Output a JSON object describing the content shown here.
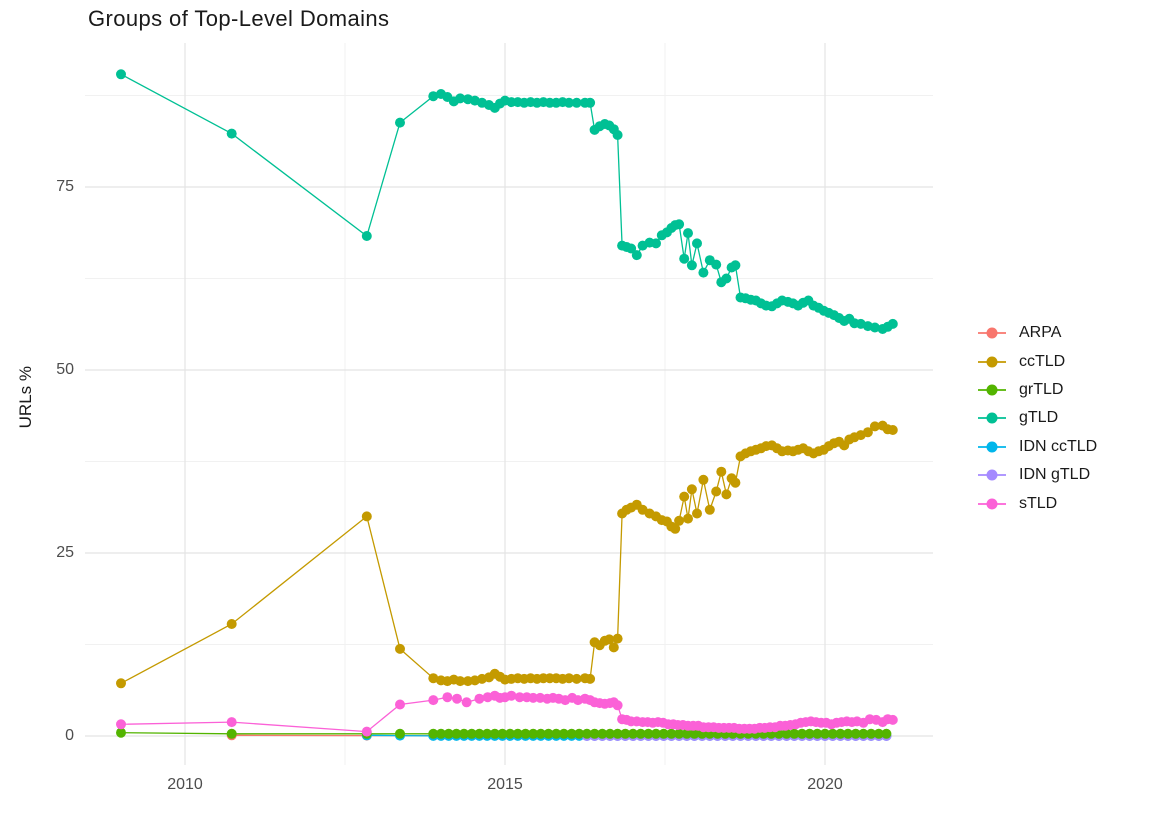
{
  "chart_data": {
    "type": "line",
    "title": "Groups of Top-Level Domains",
    "xlabel": "",
    "ylabel": "URLs %",
    "x_ticks": [
      2010,
      2015,
      2020
    ],
    "x_tick_labels": [
      "2010",
      "2015",
      "2020"
    ],
    "x_minor": [
      2012.5,
      2017.5
    ],
    "y_ticks": [
      0,
      25,
      50,
      75
    ],
    "y_tick_labels": [
      "0",
      "25",
      "50",
      "75"
    ],
    "y_minor": [
      12.5,
      37.5,
      62.5,
      87.5
    ],
    "xlim": [
      2008.44,
      2021.69
    ],
    "ylim": [
      -4.0,
      94.7
    ],
    "grid": true,
    "legend_position": "right",
    "background": "#ffffff",
    "major_grid_color": "#e4e4e4",
    "minor_grid_color": "#f1f1f1",
    "tick_label_color": "#4d4d4d",
    "title_color": "#1a1a1a",
    "draw_order": [
      0,
      4,
      5,
      2,
      3,
      1,
      6
    ],
    "series": [
      {
        "name": "ARPA",
        "color": "#F8766D",
        "points": [
          [
            2010.73,
            0.1
          ],
          [
            2012.84,
            0.05
          ]
        ],
        "flat": {
          "from": 2013.88,
          "to": 2021.06,
          "step": 0.12,
          "value": 0.05
        }
      },
      {
        "name": "ccTLD",
        "color": "#C49A00",
        "points": [
          [
            2009.0,
            7.2
          ],
          [
            2010.73,
            15.3
          ],
          [
            2012.84,
            30.0
          ],
          [
            2013.36,
            11.9
          ],
          [
            2013.88,
            7.9
          ],
          [
            2014.0,
            7.6
          ],
          [
            2014.1,
            7.5
          ],
          [
            2014.2,
            7.7
          ],
          [
            2014.3,
            7.5
          ],
          [
            2014.42,
            7.5
          ],
          [
            2014.53,
            7.6
          ],
          [
            2014.64,
            7.8
          ],
          [
            2014.75,
            8.0
          ],
          [
            2014.84,
            8.5
          ],
          [
            2014.92,
            8.1
          ],
          [
            2015.0,
            7.7
          ],
          [
            2015.1,
            7.8
          ],
          [
            2015.2,
            7.9
          ],
          [
            2015.3,
            7.8
          ],
          [
            2015.4,
            7.9
          ],
          [
            2015.5,
            7.8
          ],
          [
            2015.6,
            7.9
          ],
          [
            2015.7,
            7.9
          ],
          [
            2015.8,
            7.9
          ],
          [
            2015.9,
            7.8
          ],
          [
            2016.0,
            7.9
          ],
          [
            2016.12,
            7.8
          ],
          [
            2016.25,
            7.9
          ],
          [
            2016.33,
            7.8
          ],
          [
            2016.4,
            12.8
          ],
          [
            2016.48,
            12.4
          ],
          [
            2016.56,
            13.0
          ],
          [
            2016.63,
            13.2
          ],
          [
            2016.7,
            12.1
          ],
          [
            2016.76,
            13.3
          ],
          [
            2016.83,
            30.4
          ],
          [
            2016.9,
            30.9
          ],
          [
            2016.97,
            31.2
          ],
          [
            2017.06,
            31.6
          ],
          [
            2017.15,
            30.9
          ],
          [
            2017.26,
            30.4
          ],
          [
            2017.36,
            30.0
          ],
          [
            2017.45,
            29.5
          ],
          [
            2017.53,
            29.3
          ],
          [
            2017.6,
            28.6
          ],
          [
            2017.66,
            28.3
          ],
          [
            2017.72,
            29.4
          ],
          [
            2017.8,
            32.7
          ],
          [
            2017.86,
            29.7
          ],
          [
            2017.92,
            33.7
          ],
          [
            2018.0,
            30.4
          ],
          [
            2018.1,
            35.0
          ],
          [
            2018.2,
            30.9
          ],
          [
            2018.3,
            33.4
          ],
          [
            2018.38,
            36.1
          ],
          [
            2018.46,
            33.0
          ],
          [
            2018.54,
            35.2
          ],
          [
            2018.6,
            34.6
          ],
          [
            2018.68,
            38.2
          ],
          [
            2018.76,
            38.6
          ],
          [
            2018.84,
            38.9
          ],
          [
            2018.92,
            39.1
          ],
          [
            2019.0,
            39.3
          ],
          [
            2019.08,
            39.6
          ],
          [
            2019.17,
            39.7
          ],
          [
            2019.25,
            39.3
          ],
          [
            2019.33,
            38.9
          ],
          [
            2019.42,
            39.0
          ],
          [
            2019.5,
            38.9
          ],
          [
            2019.58,
            39.1
          ],
          [
            2019.66,
            39.3
          ],
          [
            2019.74,
            38.9
          ],
          [
            2019.82,
            38.6
          ],
          [
            2019.9,
            38.9
          ],
          [
            2019.98,
            39.1
          ],
          [
            2020.06,
            39.6
          ],
          [
            2020.14,
            40.0
          ],
          [
            2020.22,
            40.2
          ],
          [
            2020.3,
            39.7
          ],
          [
            2020.38,
            40.5
          ],
          [
            2020.46,
            40.8
          ],
          [
            2020.56,
            41.1
          ],
          [
            2020.67,
            41.5
          ],
          [
            2020.78,
            42.3
          ],
          [
            2020.9,
            42.4
          ],
          [
            2020.98,
            41.9
          ],
          [
            2021.06,
            41.8
          ]
        ]
      },
      {
        "name": "grTLD",
        "color": "#53B400",
        "points": [
          [
            2009.0,
            0.45
          ],
          [
            2010.73,
            0.3
          ],
          [
            2012.84,
            0.3
          ],
          [
            2013.36,
            0.3
          ]
        ],
        "flat": {
          "from": 2013.88,
          "to": 2021.06,
          "step": 0.12,
          "value": 0.3
        }
      },
      {
        "name": "gTLD",
        "color": "#00C094",
        "points": [
          [
            2009.0,
            90.4
          ],
          [
            2010.73,
            82.3
          ],
          [
            2012.84,
            68.3
          ],
          [
            2013.36,
            83.8
          ],
          [
            2013.88,
            87.4
          ],
          [
            2014.0,
            87.7
          ],
          [
            2014.1,
            87.3
          ],
          [
            2014.2,
            86.7
          ],
          [
            2014.3,
            87.1
          ],
          [
            2014.42,
            87.0
          ],
          [
            2014.53,
            86.8
          ],
          [
            2014.64,
            86.5
          ],
          [
            2014.75,
            86.2
          ],
          [
            2014.84,
            85.8
          ],
          [
            2014.92,
            86.4
          ],
          [
            2015.0,
            86.8
          ],
          [
            2015.1,
            86.6
          ],
          [
            2015.2,
            86.6
          ],
          [
            2015.3,
            86.5
          ],
          [
            2015.4,
            86.6
          ],
          [
            2015.5,
            86.5
          ],
          [
            2015.6,
            86.6
          ],
          [
            2015.7,
            86.5
          ],
          [
            2015.8,
            86.5
          ],
          [
            2015.9,
            86.6
          ],
          [
            2016.0,
            86.5
          ],
          [
            2016.12,
            86.5
          ],
          [
            2016.25,
            86.5
          ],
          [
            2016.33,
            86.5
          ],
          [
            2016.4,
            82.8
          ],
          [
            2016.48,
            83.3
          ],
          [
            2016.56,
            83.6
          ],
          [
            2016.63,
            83.4
          ],
          [
            2016.7,
            82.9
          ],
          [
            2016.76,
            82.1
          ],
          [
            2016.83,
            67.0
          ],
          [
            2016.9,
            66.8
          ],
          [
            2016.97,
            66.6
          ],
          [
            2017.06,
            65.7
          ],
          [
            2017.15,
            67.0
          ],
          [
            2017.26,
            67.4
          ],
          [
            2017.36,
            67.3
          ],
          [
            2017.45,
            68.4
          ],
          [
            2017.53,
            68.8
          ],
          [
            2017.6,
            69.4
          ],
          [
            2017.66,
            69.8
          ],
          [
            2017.72,
            69.9
          ],
          [
            2017.8,
            65.2
          ],
          [
            2017.86,
            68.7
          ],
          [
            2017.92,
            64.3
          ],
          [
            2018.0,
            67.3
          ],
          [
            2018.1,
            63.3
          ],
          [
            2018.2,
            65.0
          ],
          [
            2018.3,
            64.4
          ],
          [
            2018.38,
            62.0
          ],
          [
            2018.46,
            62.5
          ],
          [
            2018.54,
            64.0
          ],
          [
            2018.6,
            64.3
          ],
          [
            2018.68,
            59.9
          ],
          [
            2018.76,
            59.8
          ],
          [
            2018.84,
            59.6
          ],
          [
            2018.92,
            59.5
          ],
          [
            2019.0,
            59.1
          ],
          [
            2019.08,
            58.8
          ],
          [
            2019.17,
            58.7
          ],
          [
            2019.25,
            59.1
          ],
          [
            2019.33,
            59.5
          ],
          [
            2019.42,
            59.3
          ],
          [
            2019.5,
            59.1
          ],
          [
            2019.58,
            58.8
          ],
          [
            2019.66,
            59.2
          ],
          [
            2019.74,
            59.5
          ],
          [
            2019.82,
            58.8
          ],
          [
            2019.9,
            58.5
          ],
          [
            2019.98,
            58.1
          ],
          [
            2020.06,
            57.8
          ],
          [
            2020.14,
            57.5
          ],
          [
            2020.22,
            57.1
          ],
          [
            2020.3,
            56.7
          ],
          [
            2020.38,
            57.0
          ],
          [
            2020.46,
            56.4
          ],
          [
            2020.56,
            56.3
          ],
          [
            2020.67,
            56.0
          ],
          [
            2020.78,
            55.8
          ],
          [
            2020.9,
            55.6
          ],
          [
            2020.98,
            55.9
          ],
          [
            2021.06,
            56.3
          ]
        ]
      },
      {
        "name": "IDN ccTLD",
        "color": "#00B6EB",
        "points": [
          [
            2012.84,
            0.1
          ],
          [
            2013.36,
            0.05
          ]
        ],
        "flat": {
          "from": 2013.88,
          "to": 2021.06,
          "step": 0.12,
          "value": 0.02
        }
      },
      {
        "name": "IDN gTLD",
        "color": "#A58AFF",
        "points": [],
        "flat": {
          "from": 2016.28,
          "to": 2021.06,
          "step": 0.12,
          "value": 0.0
        }
      },
      {
        "name": "sTLD",
        "color": "#FB61D7",
        "points": [
          [
            2009.0,
            1.6
          ],
          [
            2010.73,
            1.9
          ],
          [
            2012.84,
            0.6
          ],
          [
            2013.36,
            4.3
          ],
          [
            2013.88,
            4.9
          ],
          [
            2014.1,
            5.3
          ],
          [
            2014.25,
            5.1
          ],
          [
            2014.4,
            4.6
          ],
          [
            2014.6,
            5.1
          ],
          [
            2014.73,
            5.3
          ],
          [
            2014.84,
            5.5
          ],
          [
            2014.92,
            5.2
          ],
          [
            2015.0,
            5.3
          ],
          [
            2015.1,
            5.5
          ],
          [
            2015.23,
            5.3
          ],
          [
            2015.34,
            5.3
          ],
          [
            2015.44,
            5.2
          ],
          [
            2015.55,
            5.2
          ],
          [
            2015.66,
            5.1
          ],
          [
            2015.75,
            5.2
          ],
          [
            2015.84,
            5.1
          ],
          [
            2015.94,
            4.9
          ],
          [
            2016.05,
            5.2
          ],
          [
            2016.14,
            4.9
          ],
          [
            2016.25,
            5.1
          ],
          [
            2016.33,
            4.9
          ],
          [
            2016.4,
            4.6
          ],
          [
            2016.48,
            4.5
          ],
          [
            2016.56,
            4.4
          ],
          [
            2016.64,
            4.5
          ],
          [
            2016.7,
            4.6
          ],
          [
            2016.76,
            4.2
          ],
          [
            2016.83,
            2.3
          ],
          [
            2016.9,
            2.2
          ],
          [
            2016.97,
            2.0
          ],
          [
            2017.06,
            2.0
          ],
          [
            2017.15,
            1.9
          ],
          [
            2017.23,
            1.9
          ],
          [
            2017.31,
            1.8
          ],
          [
            2017.39,
            1.9
          ],
          [
            2017.47,
            1.8
          ],
          [
            2017.55,
            1.6
          ],
          [
            2017.63,
            1.6
          ],
          [
            2017.7,
            1.5
          ],
          [
            2017.78,
            1.5
          ],
          [
            2017.86,
            1.4
          ],
          [
            2017.94,
            1.4
          ],
          [
            2018.02,
            1.4
          ],
          [
            2018.1,
            1.2
          ],
          [
            2018.18,
            1.2
          ],
          [
            2018.26,
            1.2
          ],
          [
            2018.34,
            1.1
          ],
          [
            2018.42,
            1.1
          ],
          [
            2018.5,
            1.1
          ],
          [
            2018.58,
            1.1
          ],
          [
            2018.66,
            1.0
          ],
          [
            2018.74,
            1.0
          ],
          [
            2018.82,
            1.0
          ],
          [
            2018.9,
            1.0
          ],
          [
            2018.98,
            1.1
          ],
          [
            2019.06,
            1.1
          ],
          [
            2019.14,
            1.2
          ],
          [
            2019.22,
            1.2
          ],
          [
            2019.3,
            1.4
          ],
          [
            2019.38,
            1.4
          ],
          [
            2019.46,
            1.5
          ],
          [
            2019.54,
            1.6
          ],
          [
            2019.62,
            1.8
          ],
          [
            2019.7,
            1.9
          ],
          [
            2019.78,
            2.0
          ],
          [
            2019.86,
            1.9
          ],
          [
            2019.94,
            1.8
          ],
          [
            2020.02,
            1.8
          ],
          [
            2020.1,
            1.6
          ],
          [
            2020.18,
            1.8
          ],
          [
            2020.26,
            1.9
          ],
          [
            2020.34,
            2.0
          ],
          [
            2020.42,
            1.9
          ],
          [
            2020.5,
            2.0
          ],
          [
            2020.6,
            1.8
          ],
          [
            2020.7,
            2.3
          ],
          [
            2020.8,
            2.2
          ],
          [
            2020.9,
            1.9
          ],
          [
            2020.98,
            2.3
          ],
          [
            2021.06,
            2.2
          ]
        ]
      }
    ]
  }
}
